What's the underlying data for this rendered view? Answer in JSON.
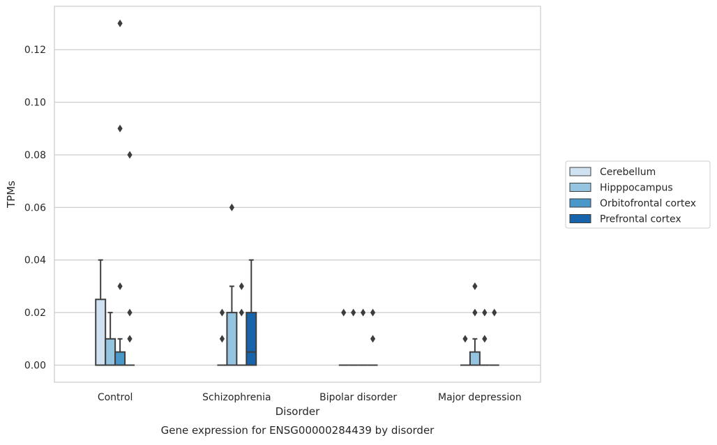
{
  "colors": {
    "Cerebellum": "#d0e1f2",
    "Hipppocampus": "#94c4df",
    "Orbitofrontal cortex": "#4a98c9",
    "Prefrontal cortex": "#1764ab",
    "grid": "#cccccc",
    "box_edge": "#3d3d3d"
  },
  "chart_data": {
    "type": "box",
    "xlabel": "Disorder",
    "ylabel": "TPMs",
    "caption": "Gene expression for ENSG00000284439 by disorder",
    "categories": [
      "Control",
      "Schizophrenia",
      "Bipolar disorder",
      "Major depression"
    ],
    "ylim": [
      -0.0065,
      0.1365
    ],
    "yticks": [
      0.0,
      0.02,
      0.04,
      0.06,
      0.08,
      0.1,
      0.12
    ],
    "ytick_labels": [
      "0.00",
      "0.02",
      "0.04",
      "0.06",
      "0.08",
      "0.10",
      "0.12"
    ],
    "grid": "horizontal",
    "legend_position": "right",
    "series": [
      {
        "name": "Cerebellum",
        "boxes": [
          {
            "q1": 0.0,
            "median": 0.0,
            "q3": 0.025,
            "whislo": 0.0,
            "whishi": 0.04,
            "fliers": []
          },
          {
            "q1": 0.0,
            "median": 0.0,
            "q3": 0.0,
            "whislo": 0.0,
            "whishi": 0.0,
            "fliers": [
              0.01,
              0.02
            ]
          },
          {
            "q1": 0.0,
            "median": 0.0,
            "q3": 0.0,
            "whislo": 0.0,
            "whishi": 0.0,
            "fliers": [
              0.02
            ]
          },
          {
            "q1": 0.0,
            "median": 0.0,
            "q3": 0.0,
            "whislo": 0.0,
            "whishi": 0.0,
            "fliers": [
              0.01
            ]
          }
        ]
      },
      {
        "name": "Hipppocampus",
        "boxes": [
          {
            "q1": 0.0,
            "median": 0.0,
            "q3": 0.01,
            "whislo": 0.0,
            "whishi": 0.02,
            "fliers": []
          },
          {
            "q1": 0.0,
            "median": 0.0,
            "q3": 0.02,
            "whislo": 0.0,
            "whishi": 0.03,
            "fliers": [
              0.06
            ]
          },
          {
            "q1": 0.0,
            "median": 0.0,
            "q3": 0.0,
            "whislo": 0.0,
            "whishi": 0.0,
            "fliers": [
              0.02
            ]
          },
          {
            "q1": 0.0,
            "median": 0.0,
            "q3": 0.005,
            "whislo": 0.0,
            "whishi": 0.01,
            "fliers": [
              0.02,
              0.03
            ]
          }
        ]
      },
      {
        "name": "Orbitofrontal cortex",
        "boxes": [
          {
            "q1": 0.0,
            "median": 0.0,
            "q3": 0.005,
            "whislo": 0.0,
            "whishi": 0.01,
            "fliers": [
              0.03,
              0.09,
              0.13
            ]
          },
          {
            "q1": 0.0,
            "median": 0.0,
            "q3": 0.0,
            "whislo": 0.0,
            "whishi": 0.0,
            "fliers": [
              0.02,
              0.03
            ]
          },
          {
            "q1": 0.0,
            "median": 0.0,
            "q3": 0.0,
            "whislo": 0.0,
            "whishi": 0.0,
            "fliers": [
              0.02
            ]
          },
          {
            "q1": 0.0,
            "median": 0.0,
            "q3": 0.0,
            "whislo": 0.0,
            "whishi": 0.0,
            "fliers": [
              0.01,
              0.02
            ]
          }
        ]
      },
      {
        "name": "Prefrontal cortex",
        "boxes": [
          {
            "q1": 0.0,
            "median": 0.0,
            "q3": 0.0,
            "whislo": 0.0,
            "whishi": 0.0,
            "fliers": [
              0.01,
              0.02,
              0.08
            ]
          },
          {
            "q1": 0.0,
            "median": 0.005,
            "q3": 0.02,
            "whislo": 0.0,
            "whishi": 0.04,
            "fliers": []
          },
          {
            "q1": 0.0,
            "median": 0.0,
            "q3": 0.0,
            "whislo": 0.0,
            "whishi": 0.0,
            "fliers": [
              0.01,
              0.02
            ]
          },
          {
            "q1": 0.0,
            "median": 0.0,
            "q3": 0.0,
            "whislo": 0.0,
            "whishi": 0.0,
            "fliers": [
              0.02
            ]
          }
        ]
      }
    ]
  }
}
